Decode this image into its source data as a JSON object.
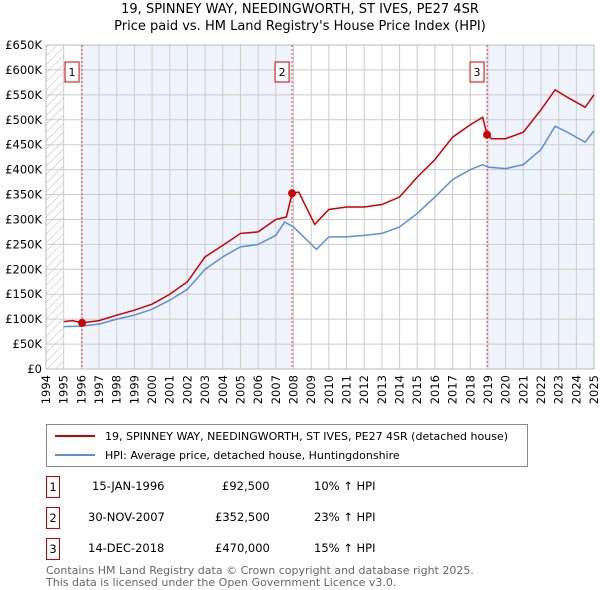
{
  "title": "19, SPINNEY WAY, NEEDINGWORTH, ST IVES, PE27 4SR",
  "subtitle": "Price paid vs. HM Land Registry's House Price Index (HPI)",
  "chart_data": {
    "type": "line",
    "title": "19, SPINNEY WAY, NEEDINGWORTH, ST IVES, PE27 4SR",
    "subtitle": "Price paid vs. HM Land Registry's House Price Index (HPI)",
    "xlim": [
      1994,
      2025
    ],
    "ylim": [
      0,
      650000
    ],
    "yticks": [
      0,
      50000,
      100000,
      150000,
      200000,
      250000,
      300000,
      350000,
      400000,
      450000,
      500000,
      550000,
      600000,
      650000
    ],
    "ytick_labels": [
      "£0",
      "£50K",
      "£100K",
      "£150K",
      "£200K",
      "£250K",
      "£300K",
      "£350K",
      "£400K",
      "£450K",
      "£500K",
      "£550K",
      "£600K",
      "£650K"
    ],
    "xticks": [
      "1994",
      "1995",
      "1996",
      "1997",
      "1998",
      "1999",
      "2000",
      "2001",
      "2002",
      "2003",
      "2004",
      "2005",
      "2006",
      "2007",
      "2008",
      "2009",
      "2010",
      "2011",
      "2012",
      "2013",
      "2014",
      "2015",
      "2016",
      "2017",
      "2018",
      "2019",
      "2020",
      "2021",
      "2022",
      "2023",
      "2024",
      "2025"
    ],
    "grid": true,
    "series": [
      {
        "name": "19, SPINNEY WAY, NEEDINGWORTH, ST IVES, PE27 4SR (detached house)",
        "color": "#cc0000",
        "x": [
          1995,
          1995.5,
          1996.04,
          1997,
          1998,
          1999,
          2000,
          2001,
          2002,
          2003,
          2004,
          2005,
          2006,
          2007,
          2007.6,
          2007.92,
          2008.3,
          2009.2,
          2010,
          2011,
          2012,
          2013,
          2014,
          2015,
          2016,
          2017,
          2018,
          2018.7,
          2018.95,
          2019.2,
          2020,
          2021,
          2022,
          2022.8,
          2023.5,
          2024.5,
          2025
        ],
        "y": [
          95000,
          97000,
          92500,
          97000,
          108000,
          118000,
          130000,
          150000,
          175000,
          225000,
          248000,
          272000,
          275000,
          300000,
          305000,
          352500,
          355000,
          290000,
          320000,
          325000,
          325000,
          330000,
          345000,
          385000,
          420000,
          465000,
          490000,
          505000,
          470000,
          462000,
          462000,
          475000,
          520000,
          560000,
          545000,
          525000,
          550000
        ]
      },
      {
        "name": "HPI: Average price, detached house, Huntingdonshire",
        "color": "#5b8fd0",
        "x": [
          1995,
          1996,
          1997,
          1998,
          1999,
          2000,
          2001,
          2002,
          2003,
          2004,
          2005,
          2006,
          2007,
          2007.5,
          2008,
          2009.3,
          2010,
          2011,
          2012,
          2013,
          2014,
          2015,
          2016,
          2017,
          2018,
          2018.7,
          2019,
          2020,
          2021,
          2022,
          2022.8,
          2023.5,
          2024.5,
          2025
        ],
        "y": [
          85000,
          86000,
          90000,
          100000,
          108000,
          120000,
          138000,
          160000,
          200000,
          225000,
          245000,
          250000,
          268000,
          295000,
          285000,
          240000,
          265000,
          265000,
          268000,
          272000,
          285000,
          312000,
          345000,
          380000,
          400000,
          410000,
          405000,
          402000,
          410000,
          440000,
          487000,
          475000,
          455000,
          478000
        ]
      }
    ],
    "markers": [
      {
        "label": "1",
        "x": 1996.04,
        "y": 92500
      },
      {
        "label": "2",
        "x": 2007.92,
        "y": 352500
      },
      {
        "label": "3",
        "x": 2018.95,
        "y": 470000
      }
    ],
    "shaded_regions": [
      [
        1996.04,
        2007.92
      ],
      [
        2018.95,
        2025
      ]
    ],
    "hatched_region": [
      1994,
      1995
    ]
  },
  "legend": {
    "red": "19, SPINNEY WAY, NEEDINGWORTH, ST IVES, PE27 4SR (detached house)",
    "blue": "HPI: Average price, detached house, Huntingdonshire"
  },
  "transactions": [
    {
      "num": "1",
      "date": "15-JAN-1996",
      "price": "£92,500",
      "hpi": "10% ↑ HPI"
    },
    {
      "num": "2",
      "date": "30-NOV-2007",
      "price": "£352,500",
      "hpi": "23% ↑ HPI"
    },
    {
      "num": "3",
      "date": "14-DEC-2018",
      "price": "£470,000",
      "hpi": "15% ↑ HPI"
    }
  ],
  "footer": {
    "line1": "Contains HM Land Registry data © Crown copyright and database right 2025.",
    "line2": "This data is licensed under the Open Government Licence v3.0."
  }
}
